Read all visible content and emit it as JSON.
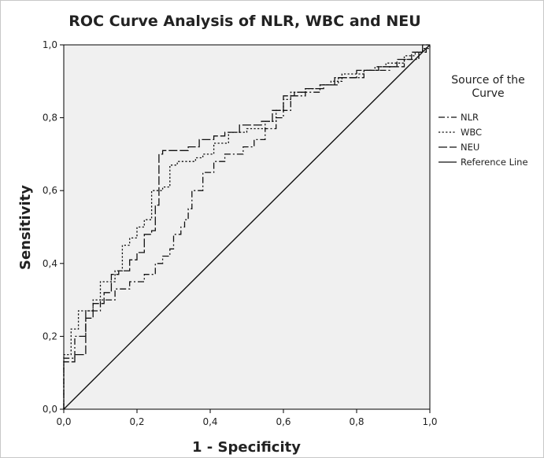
{
  "chart_data": {
    "type": "line",
    "title": "ROC Curve Analysis of NLR, WBC and NEU",
    "xlabel": "1 - Specificity",
    "ylabel": "Sensitivity",
    "xlim": [
      0,
      1
    ],
    "ylim": [
      0,
      1
    ],
    "x_ticks": [
      "0,0",
      "0,2",
      "0,4",
      "0,6",
      "0,8",
      "1,0"
    ],
    "y_ticks": [
      "0,0",
      "0,2",
      "0,4",
      "0,6",
      "0,8",
      "1,0"
    ],
    "grid": false,
    "legend_title": "Source of the Curve",
    "legend_position": "right",
    "series": [
      {
        "name": "NLR",
        "style": "dash-dot",
        "points": [
          [
            0,
            0
          ],
          [
            0,
            0.14
          ],
          [
            0.03,
            0.14
          ],
          [
            0.03,
            0.2
          ],
          [
            0.06,
            0.2
          ],
          [
            0.06,
            0.27
          ],
          [
            0.1,
            0.27
          ],
          [
            0.1,
            0.3
          ],
          [
            0.14,
            0.3
          ],
          [
            0.14,
            0.33
          ],
          [
            0.18,
            0.33
          ],
          [
            0.18,
            0.35
          ],
          [
            0.22,
            0.35
          ],
          [
            0.22,
            0.37
          ],
          [
            0.25,
            0.37
          ],
          [
            0.25,
            0.4
          ],
          [
            0.27,
            0.4
          ],
          [
            0.27,
            0.42
          ],
          [
            0.29,
            0.42
          ],
          [
            0.29,
            0.44
          ],
          [
            0.3,
            0.44
          ],
          [
            0.3,
            0.48
          ],
          [
            0.32,
            0.48
          ],
          [
            0.32,
            0.5
          ],
          [
            0.33,
            0.5
          ],
          [
            0.33,
            0.52
          ],
          [
            0.34,
            0.52
          ],
          [
            0.34,
            0.55
          ],
          [
            0.35,
            0.55
          ],
          [
            0.35,
            0.6
          ],
          [
            0.38,
            0.6
          ],
          [
            0.38,
            0.65
          ],
          [
            0.41,
            0.65
          ],
          [
            0.41,
            0.68
          ],
          [
            0.44,
            0.68
          ],
          [
            0.44,
            0.7
          ],
          [
            0.49,
            0.7
          ],
          [
            0.49,
            0.72
          ],
          [
            0.52,
            0.72
          ],
          [
            0.52,
            0.74
          ],
          [
            0.55,
            0.74
          ],
          [
            0.55,
            0.77
          ],
          [
            0.58,
            0.77
          ],
          [
            0.58,
            0.8
          ],
          [
            0.6,
            0.8
          ],
          [
            0.6,
            0.82
          ],
          [
            0.62,
            0.82
          ],
          [
            0.62,
            0.86
          ],
          [
            0.66,
            0.86
          ],
          [
            0.66,
            0.87
          ],
          [
            0.7,
            0.87
          ],
          [
            0.7,
            0.89
          ],
          [
            0.75,
            0.89
          ],
          [
            0.75,
            0.91
          ],
          [
            0.82,
            0.91
          ],
          [
            0.82,
            0.93
          ],
          [
            0.89,
            0.93
          ],
          [
            0.89,
            0.94
          ],
          [
            0.93,
            0.94
          ],
          [
            0.93,
            0.96
          ],
          [
            0.97,
            0.96
          ],
          [
            0.97,
            0.98
          ],
          [
            0.99,
            0.98
          ],
          [
            0.99,
            1.0
          ],
          [
            1.0,
            1.0
          ]
        ]
      },
      {
        "name": "WBC",
        "style": "dotted",
        "points": [
          [
            0,
            0
          ],
          [
            0,
            0.15
          ],
          [
            0.02,
            0.15
          ],
          [
            0.02,
            0.22
          ],
          [
            0.04,
            0.22
          ],
          [
            0.04,
            0.27
          ],
          [
            0.08,
            0.27
          ],
          [
            0.08,
            0.3
          ],
          [
            0.1,
            0.3
          ],
          [
            0.1,
            0.35
          ],
          [
            0.14,
            0.35
          ],
          [
            0.14,
            0.38
          ],
          [
            0.16,
            0.38
          ],
          [
            0.16,
            0.45
          ],
          [
            0.18,
            0.45
          ],
          [
            0.18,
            0.47
          ],
          [
            0.2,
            0.47
          ],
          [
            0.2,
            0.5
          ],
          [
            0.22,
            0.5
          ],
          [
            0.22,
            0.52
          ],
          [
            0.24,
            0.52
          ],
          [
            0.24,
            0.6
          ],
          [
            0.27,
            0.6
          ],
          [
            0.27,
            0.61
          ],
          [
            0.29,
            0.61
          ],
          [
            0.29,
            0.67
          ],
          [
            0.31,
            0.67
          ],
          [
            0.31,
            0.68
          ],
          [
            0.36,
            0.68
          ],
          [
            0.36,
            0.69
          ],
          [
            0.38,
            0.69
          ],
          [
            0.38,
            0.7
          ],
          [
            0.41,
            0.7
          ],
          [
            0.41,
            0.73
          ],
          [
            0.45,
            0.73
          ],
          [
            0.45,
            0.76
          ],
          [
            0.5,
            0.76
          ],
          [
            0.5,
            0.77
          ],
          [
            0.55,
            0.77
          ],
          [
            0.55,
            0.79
          ],
          [
            0.58,
            0.79
          ],
          [
            0.58,
            0.82
          ],
          [
            0.6,
            0.82
          ],
          [
            0.6,
            0.85
          ],
          [
            0.62,
            0.85
          ],
          [
            0.62,
            0.87
          ],
          [
            0.66,
            0.87
          ],
          [
            0.66,
            0.88
          ],
          [
            0.7,
            0.88
          ],
          [
            0.7,
            0.89
          ],
          [
            0.73,
            0.89
          ],
          [
            0.73,
            0.9
          ],
          [
            0.76,
            0.9
          ],
          [
            0.76,
            0.92
          ],
          [
            0.82,
            0.92
          ],
          [
            0.82,
            0.93
          ],
          [
            0.85,
            0.93
          ],
          [
            0.85,
            0.94
          ],
          [
            0.88,
            0.94
          ],
          [
            0.88,
            0.95
          ],
          [
            0.93,
            0.95
          ],
          [
            0.93,
            0.97
          ],
          [
            0.96,
            0.97
          ],
          [
            0.96,
            0.98
          ],
          [
            0.98,
            0.98
          ],
          [
            0.98,
            0.99
          ],
          [
            1.0,
            0.99
          ],
          [
            1.0,
            1.0
          ]
        ]
      },
      {
        "name": "NEU",
        "style": "long-dash",
        "points": [
          [
            0,
            0
          ],
          [
            0,
            0.13
          ],
          [
            0.03,
            0.13
          ],
          [
            0.03,
            0.15
          ],
          [
            0.06,
            0.15
          ],
          [
            0.06,
            0.25
          ],
          [
            0.08,
            0.25
          ],
          [
            0.08,
            0.29
          ],
          [
            0.11,
            0.29
          ],
          [
            0.11,
            0.32
          ],
          [
            0.13,
            0.32
          ],
          [
            0.13,
            0.37
          ],
          [
            0.15,
            0.37
          ],
          [
            0.15,
            0.38
          ],
          [
            0.18,
            0.38
          ],
          [
            0.18,
            0.41
          ],
          [
            0.2,
            0.41
          ],
          [
            0.2,
            0.43
          ],
          [
            0.22,
            0.43
          ],
          [
            0.22,
            0.48
          ],
          [
            0.24,
            0.48
          ],
          [
            0.24,
            0.49
          ],
          [
            0.25,
            0.49
          ],
          [
            0.25,
            0.56
          ],
          [
            0.26,
            0.56
          ],
          [
            0.26,
            0.7
          ],
          [
            0.27,
            0.7
          ],
          [
            0.27,
            0.71
          ],
          [
            0.34,
            0.71
          ],
          [
            0.34,
            0.72
          ],
          [
            0.37,
            0.72
          ],
          [
            0.37,
            0.74
          ],
          [
            0.41,
            0.74
          ],
          [
            0.41,
            0.75
          ],
          [
            0.44,
            0.75
          ],
          [
            0.44,
            0.76
          ],
          [
            0.48,
            0.76
          ],
          [
            0.48,
            0.78
          ],
          [
            0.54,
            0.78
          ],
          [
            0.54,
            0.79
          ],
          [
            0.57,
            0.79
          ],
          [
            0.57,
            0.82
          ],
          [
            0.6,
            0.82
          ],
          [
            0.6,
            0.86
          ],
          [
            0.63,
            0.86
          ],
          [
            0.63,
            0.87
          ],
          [
            0.66,
            0.87
          ],
          [
            0.66,
            0.88
          ],
          [
            0.71,
            0.88
          ],
          [
            0.71,
            0.89
          ],
          [
            0.74,
            0.89
          ],
          [
            0.74,
            0.91
          ],
          [
            0.8,
            0.91
          ],
          [
            0.8,
            0.93
          ],
          [
            0.86,
            0.93
          ],
          [
            0.86,
            0.94
          ],
          [
            0.91,
            0.94
          ],
          [
            0.91,
            0.96
          ],
          [
            0.95,
            0.96
          ],
          [
            0.95,
            0.98
          ],
          [
            0.98,
            0.98
          ],
          [
            0.98,
            1.0
          ],
          [
            1.0,
            1.0
          ]
        ]
      },
      {
        "name": "Reference Line",
        "style": "solid",
        "points": [
          [
            0,
            0
          ],
          [
            1,
            1
          ]
        ]
      }
    ]
  }
}
